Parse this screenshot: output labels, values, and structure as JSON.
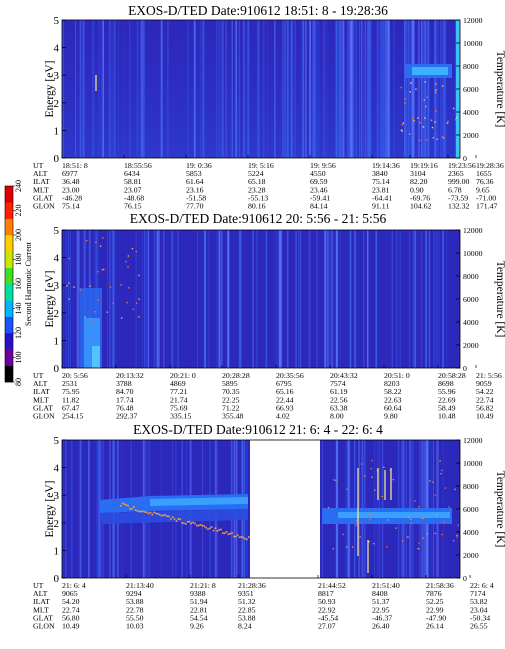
{
  "chart_data": {
    "type": "heatmap",
    "colorbar": {
      "label": "Second Harmonic Current",
      "ticks": [
        "80",
        "100",
        "120",
        "140",
        "160",
        "180",
        "200",
        "220",
        "240"
      ],
      "colors": [
        "#000000",
        "#6a00a0",
        "#2a10c8",
        "#1d50ff",
        "#00b4ff",
        "#00e0a0",
        "#40e020",
        "#c8e800",
        "#ffd000",
        "#ff8000",
        "#ff2000",
        "#e00000"
      ]
    },
    "panels": [
      {
        "title": "EXOS-D/TED   Date:910612   18:51: 8 - 19:28:36",
        "ylabel": "Energy [eV]",
        "ylabel_right": "Temperature [K]",
        "yticks": [
          "0",
          "1",
          "2",
          "3",
          "4",
          "5"
        ],
        "yticks_right": [
          "0",
          "2000",
          "4000",
          "6000",
          "8000",
          "10000",
          "12000"
        ],
        "ylim": [
          0,
          5
        ],
        "ylim_right": [
          0,
          12000
        ],
        "row_labels": [
          "UT",
          "ALT",
          "ILAT",
          "MLT",
          "GLAT",
          "GLON"
        ],
        "columns": [
          [
            "18:51: 8",
            "6977",
            "36.48",
            "23.00",
            "-46.28",
            "75.14"
          ],
          [
            "18:55:56",
            "6434",
            "58.81",
            "23.07",
            "-48.68",
            "76.15"
          ],
          [
            "19: 0:36",
            "5853",
            "61.64",
            "23.16",
            "-51.58",
            "77.70"
          ],
          [
            "19: 5:16",
            "5224",
            "65.18",
            "23.28",
            "-55.13",
            "80.16"
          ],
          [
            "19: 9:56",
            "4550",
            "69.59",
            "23.46",
            "-59.41",
            "84.14"
          ],
          [
            "19:14:36",
            "3840",
            "75.14",
            "23.81",
            "-64.41",
            "91.11"
          ],
          [
            "19:19:16",
            "3104",
            "82.20",
            "0.90",
            "-69.76",
            "104.62"
          ],
          [
            "19:23:56",
            "2365",
            "999.00",
            "6.78",
            "-73.59",
            "132.32"
          ],
          [
            "19:28:36",
            "1655",
            "76.36",
            "9.65",
            "-71.00",
            "171.47"
          ]
        ]
      },
      {
        "title": "EXOS-D/TED   Date:910612   20: 5:56 - 21: 5:56",
        "ylabel": "Energy [eV]",
        "ylabel_right": "Temperature [K]",
        "yticks": [
          "0",
          "1",
          "2",
          "3",
          "4",
          "5"
        ],
        "yticks_right": [
          "0",
          "2000",
          "4000",
          "6000",
          "8000",
          "10000",
          "12000"
        ],
        "ylim": [
          0,
          5
        ],
        "ylim_right": [
          0,
          12000
        ],
        "row_labels": [
          "UT",
          "ALT",
          "ILAT",
          "MLT",
          "GLAT",
          "GLON"
        ],
        "columns": [
          [
            "20: 5:56",
            "2531",
            "75.95",
            "11.82",
            "67.47",
            "254.15"
          ],
          [
            "20:13:32",
            "3788",
            "84.70",
            "17.74",
            "76.48",
            "292.37"
          ],
          [
            "20:21: 0",
            "4869",
            "77.21",
            "21.74",
            "75.69",
            "335.15"
          ],
          [
            "20:28:28",
            "5895",
            "70.35",
            "22.25",
            "71.22",
            "355.48"
          ],
          [
            "20:35:56",
            "6795",
            "65.16",
            "22.44",
            "66.93",
            "4.02"
          ],
          [
            "20:43:32",
            "7574",
            "61.19",
            "22.56",
            "63.38",
            "8.00"
          ],
          [
            "20:51: 0",
            "8203",
            "58.22",
            "22.63",
            "60.64",
            "9.80"
          ],
          [
            "20:58:28",
            "8698",
            "55.96",
            "22.69",
            "58.49",
            "10.48"
          ],
          [
            "21: 5:56",
            "9059",
            "54.22",
            "22.74",
            "56.82",
            "10.49"
          ]
        ]
      },
      {
        "title": "EXOS-D/TED   Date:910612   21: 6: 4 - 22: 6: 4",
        "ylabel": "Energy [eV]",
        "ylabel_right": "Temperature [K]",
        "yticks": [
          "0",
          "1",
          "2",
          "3",
          "4",
          "5"
        ],
        "yticks_right": [
          "0",
          "2000",
          "4000",
          "6000",
          "8000",
          "10000",
          "12000"
        ],
        "ylim": [
          0,
          5
        ],
        "ylim_right": [
          0,
          12000
        ],
        "row_labels": [
          "UT",
          "ALT",
          "ILAT",
          "MLT",
          "GLAT",
          "GLON"
        ],
        "columns": [
          [
            "21: 6: 4",
            "9065",
            "54.20",
            "22.74",
            "56.80",
            "10.49"
          ],
          [
            "21:13:40",
            "9294",
            "53.88",
            "22.78",
            "55.50",
            "10.03"
          ],
          [
            "21:21: 8",
            "9388",
            "51.94",
            "22.81",
            "54.54",
            "9.26"
          ],
          [
            "21:28:36",
            "9351",
            "51.32",
            "22.85",
            "53.88",
            "8.24"
          ],
          [
            "21:44:52",
            "8817",
            "50.93",
            "22.92",
            "-45.54",
            "27.07"
          ],
          [
            "21:51:40",
            "8408",
            "51.37",
            "22.95",
            "-46.37",
            "26.40"
          ],
          [
            "21:58:36",
            "7876",
            "52.25",
            "22.99",
            "-47.90",
            "26.14"
          ],
          [
            "22: 6: 4",
            "7174",
            "53.82",
            "23.04",
            "-50.34",
            "26.55"
          ]
        ]
      }
    ]
  }
}
